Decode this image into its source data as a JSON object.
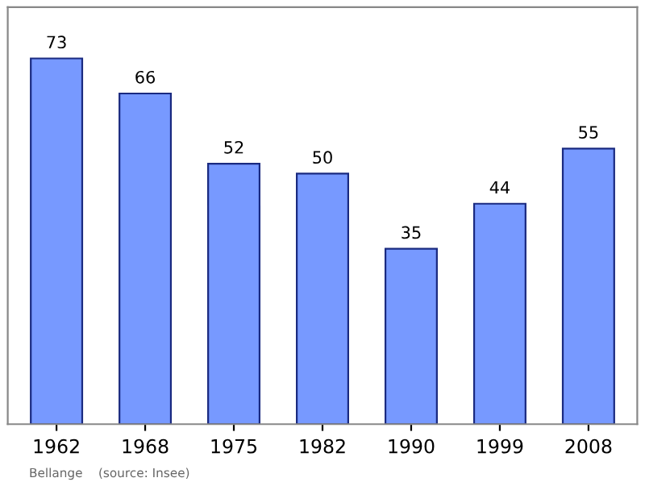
{
  "chart_data": {
    "type": "bar",
    "categories": [
      "1962",
      "1968",
      "1975",
      "1982",
      "1990",
      "1999",
      "2008"
    ],
    "values": [
      73,
      66,
      52,
      50,
      35,
      44,
      55
    ],
    "color": "#7799ff",
    "data_labels": true,
    "grid": false,
    "annotations": [
      "Bellange    (source: Insee)"
    ]
  }
}
